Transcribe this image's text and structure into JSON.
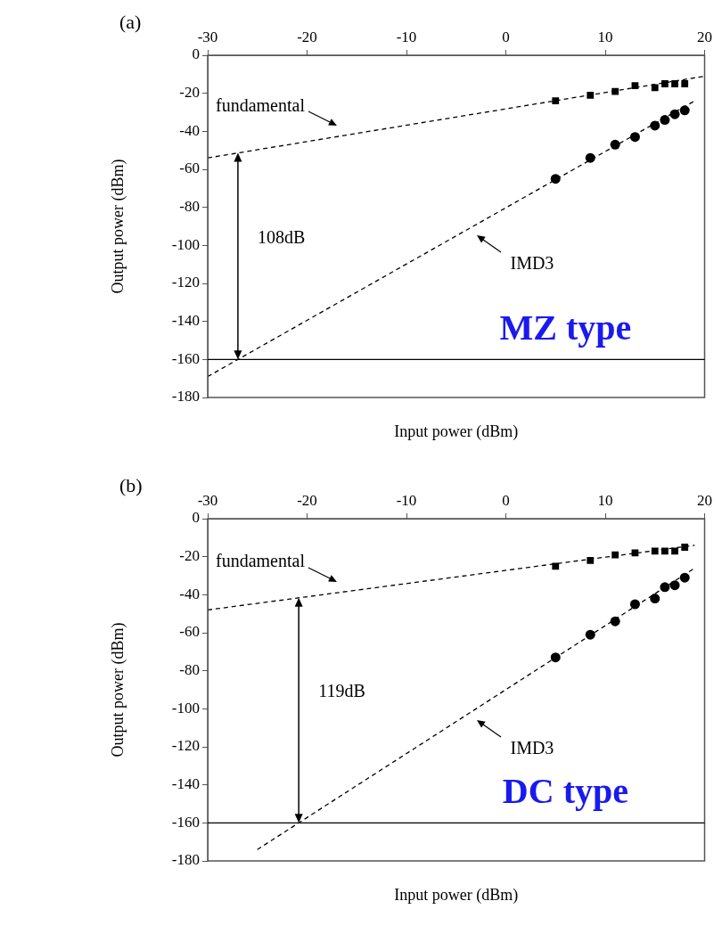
{
  "chart_data": [
    {
      "type": "scatter",
      "title": "(a)",
      "xlabel": "Input power (dBm)",
      "ylabel": "Output power (dBm)",
      "xlim": [
        -30,
        20
      ],
      "xticks": [
        -30,
        -20,
        -10,
        0,
        10,
        20
      ],
      "ylim": [
        -180,
        0
      ],
      "yticks": [
        0,
        -20,
        -40,
        -60,
        -80,
        -100,
        -120,
        -140,
        -160,
        -180
      ],
      "series": [
        {
          "marker": "square",
          "color": "#000000",
          "x": [
            5,
            8.5,
            11,
            13,
            15,
            16,
            17,
            18
          ],
          "values": [
            -24,
            -21,
            -19,
            -16,
            -17,
            -15,
            -15,
            -15
          ]
        },
        {
          "marker": "circle",
          "color": "#000000",
          "x": [
            5,
            8.5,
            11,
            13,
            15,
            16,
            17,
            18
          ],
          "values": [
            -65,
            -54,
            -47,
            -43,
            -37,
            -34,
            -31,
            -29
          ]
        },
        {
          "type": "line",
          "name": "fundamental",
          "line_style": "dashed",
          "marker": "none",
          "color": "#000000",
          "x": [
            -30,
            20
          ],
          "values": [
            -54,
            -11
          ]
        },
        {
          "type": "line",
          "name": "IMD3",
          "line_style": "dashed",
          "marker": "none",
          "color": "#000000",
          "x": [
            -30,
            19
          ],
          "values": [
            -169,
            -24
          ]
        }
      ],
      "ref_lines": [
        {
          "axis": "y",
          "value": -160,
          "color": "#000000",
          "line_style": "solid"
        }
      ],
      "annotations": [
        "108dB",
        "MZ type"
      ]
    },
    {
      "type": "scatter",
      "title": "(b)",
      "xlabel": "Input power (dBm)",
      "ylabel": "Output power (dBm)",
      "xlim": [
        -30,
        20
      ],
      "xticks": [
        -30,
        -20,
        -10,
        0,
        10,
        20
      ],
      "ylim": [
        -180,
        0
      ],
      "yticks": [
        0,
        -20,
        -40,
        -60,
        -80,
        -100,
        -120,
        -140,
        -160,
        -180
      ],
      "series": [
        {
          "marker": "square",
          "color": "#000000",
          "x": [
            5,
            8.5,
            11,
            13,
            15,
            16,
            17,
            18
          ],
          "values": [
            -25,
            -22,
            -19,
            -18,
            -17,
            -17,
            -17,
            -15
          ]
        },
        {
          "marker": "circle",
          "color": "#000000",
          "x": [
            5,
            8.5,
            11,
            13,
            15,
            16,
            17,
            18
          ],
          "values": [
            -73,
            -61,
            -54,
            -45,
            -42,
            -36,
            -35,
            -31
          ]
        },
        {
          "type": "line",
          "name": "fundamental",
          "line_style": "dashed",
          "marker": "none",
          "color": "#000000",
          "x": [
            -30,
            19
          ],
          "values": [
            -48,
            -14
          ]
        },
        {
          "type": "line",
          "name": "IMD3",
          "line_style": "dashed",
          "marker": "none",
          "color": "#000000",
          "x": [
            -25,
            19
          ],
          "values": [
            -174,
            -26
          ]
        }
      ],
      "ref_lines": [
        {
          "axis": "y",
          "value": -160,
          "color": "#000000",
          "line_style": "solid"
        }
      ],
      "annotations": [
        "119dB",
        "DC type"
      ]
    }
  ]
}
